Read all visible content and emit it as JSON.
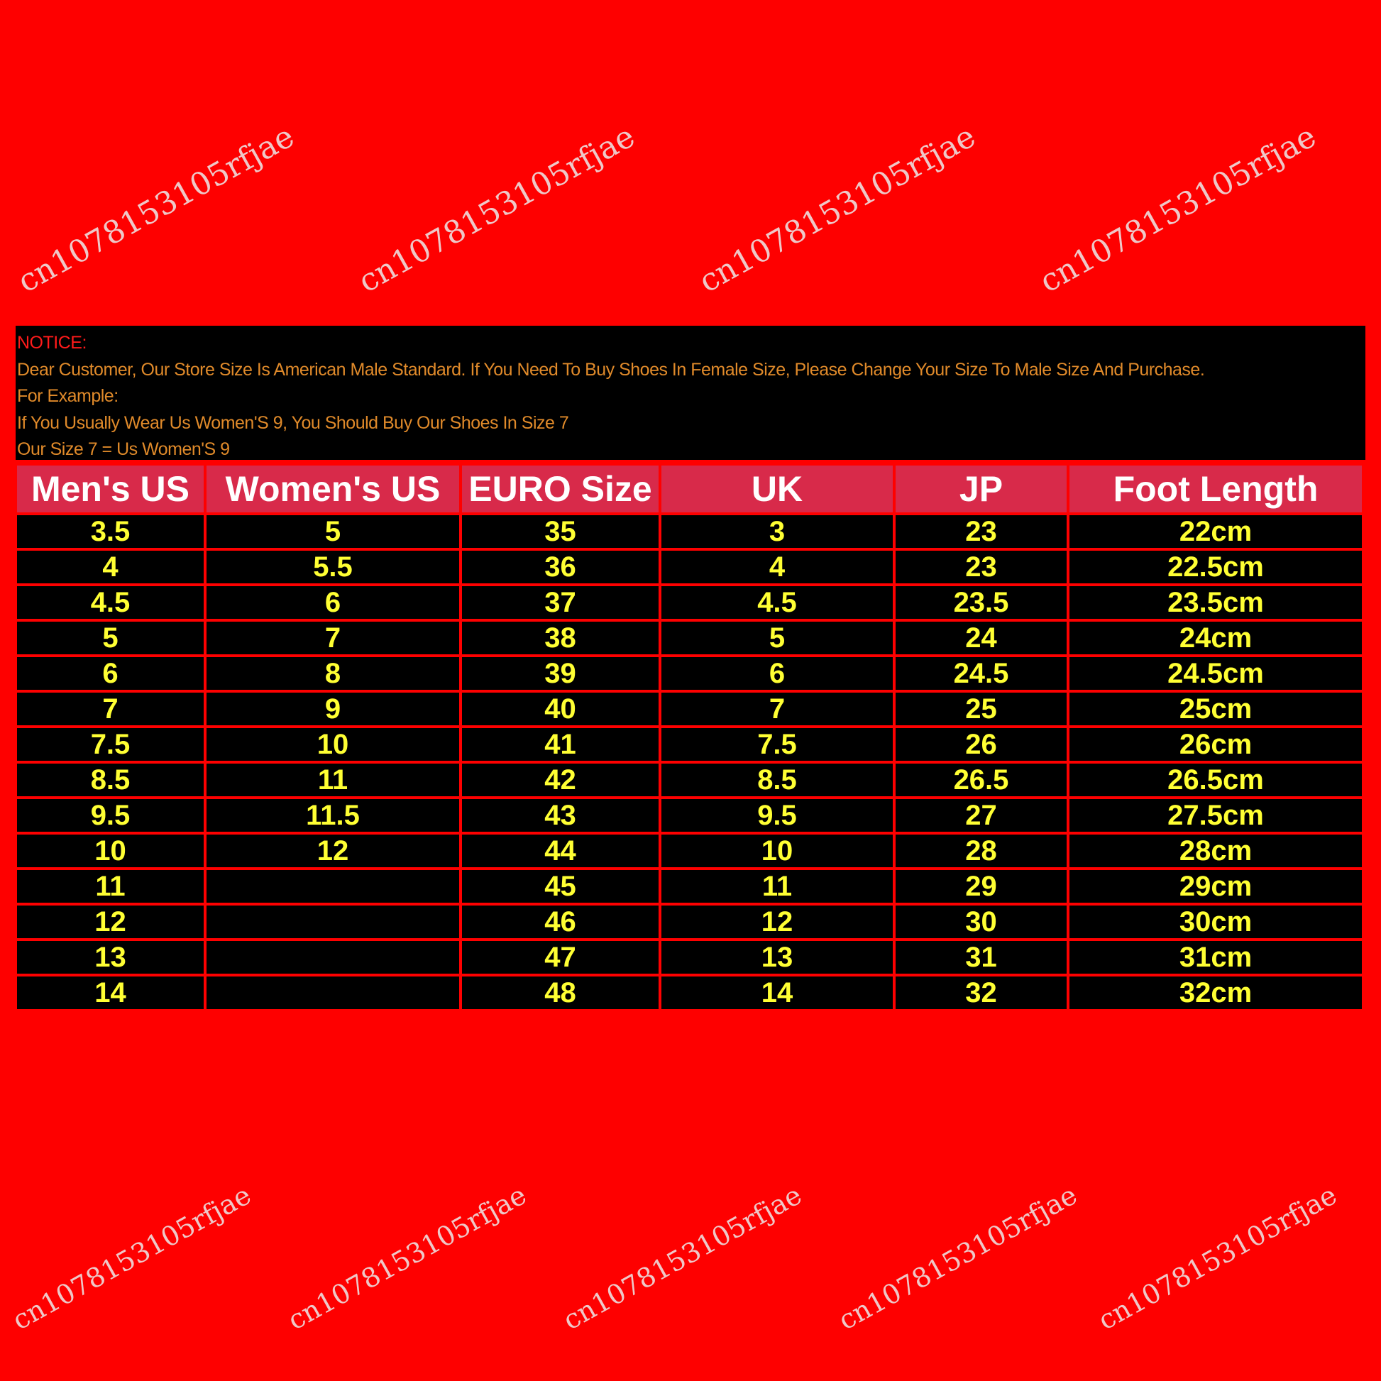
{
  "notice": {
    "title": "NOTICE:",
    "lines": [
      "Dear Customer, Our Store Size Is American Male Standard. If You Need To Buy Shoes In Female Size, Please Change Your Size To Male Size And Purchase.",
      "For Example:",
      "If You Usually Wear Us Women'S 9, You Should Buy Our Shoes In Size 7",
      "Our Size 7 = Us Women'S 9"
    ]
  },
  "size_table": {
    "headers": [
      "Men's US",
      "Women's US",
      "EURO Size",
      "UK",
      "JP",
      "Foot Length"
    ],
    "rows": [
      [
        "3.5",
        "5",
        "35",
        "3",
        "23",
        "22cm"
      ],
      [
        "4",
        "5.5",
        "36",
        "4",
        "23",
        "22.5cm"
      ],
      [
        "4.5",
        "6",
        "37",
        "4.5",
        "23.5",
        "23.5cm"
      ],
      [
        "5",
        "7",
        "38",
        "5",
        "24",
        "24cm"
      ],
      [
        "6",
        "8",
        "39",
        "6",
        "24.5",
        "24.5cm"
      ],
      [
        "7",
        "9",
        "40",
        "7",
        "25",
        "25cm"
      ],
      [
        "7.5",
        "10",
        "41",
        "7.5",
        "26",
        "26cm"
      ],
      [
        "8.5",
        "11",
        "42",
        "8.5",
        "26.5",
        "26.5cm"
      ],
      [
        "9.5",
        "11.5",
        "43",
        "9.5",
        "27",
        "27.5cm"
      ],
      [
        "10",
        "12",
        "44",
        "10",
        "28",
        "28cm"
      ],
      [
        "11",
        "",
        "45",
        "11",
        "29",
        "29cm"
      ],
      [
        "12",
        "",
        "46",
        "12",
        "30",
        "30cm"
      ],
      [
        "13",
        "",
        "47",
        "13",
        "31",
        "31cm"
      ],
      [
        "14",
        "",
        "48",
        "14",
        "32",
        "32cm"
      ]
    ]
  },
  "watermark": "cn1078153105rfjae",
  "colors": {
    "background": "#fe0000",
    "header": "#d82a4a",
    "cell_text": "#ffff33",
    "notice_text": "#e08a2a"
  }
}
